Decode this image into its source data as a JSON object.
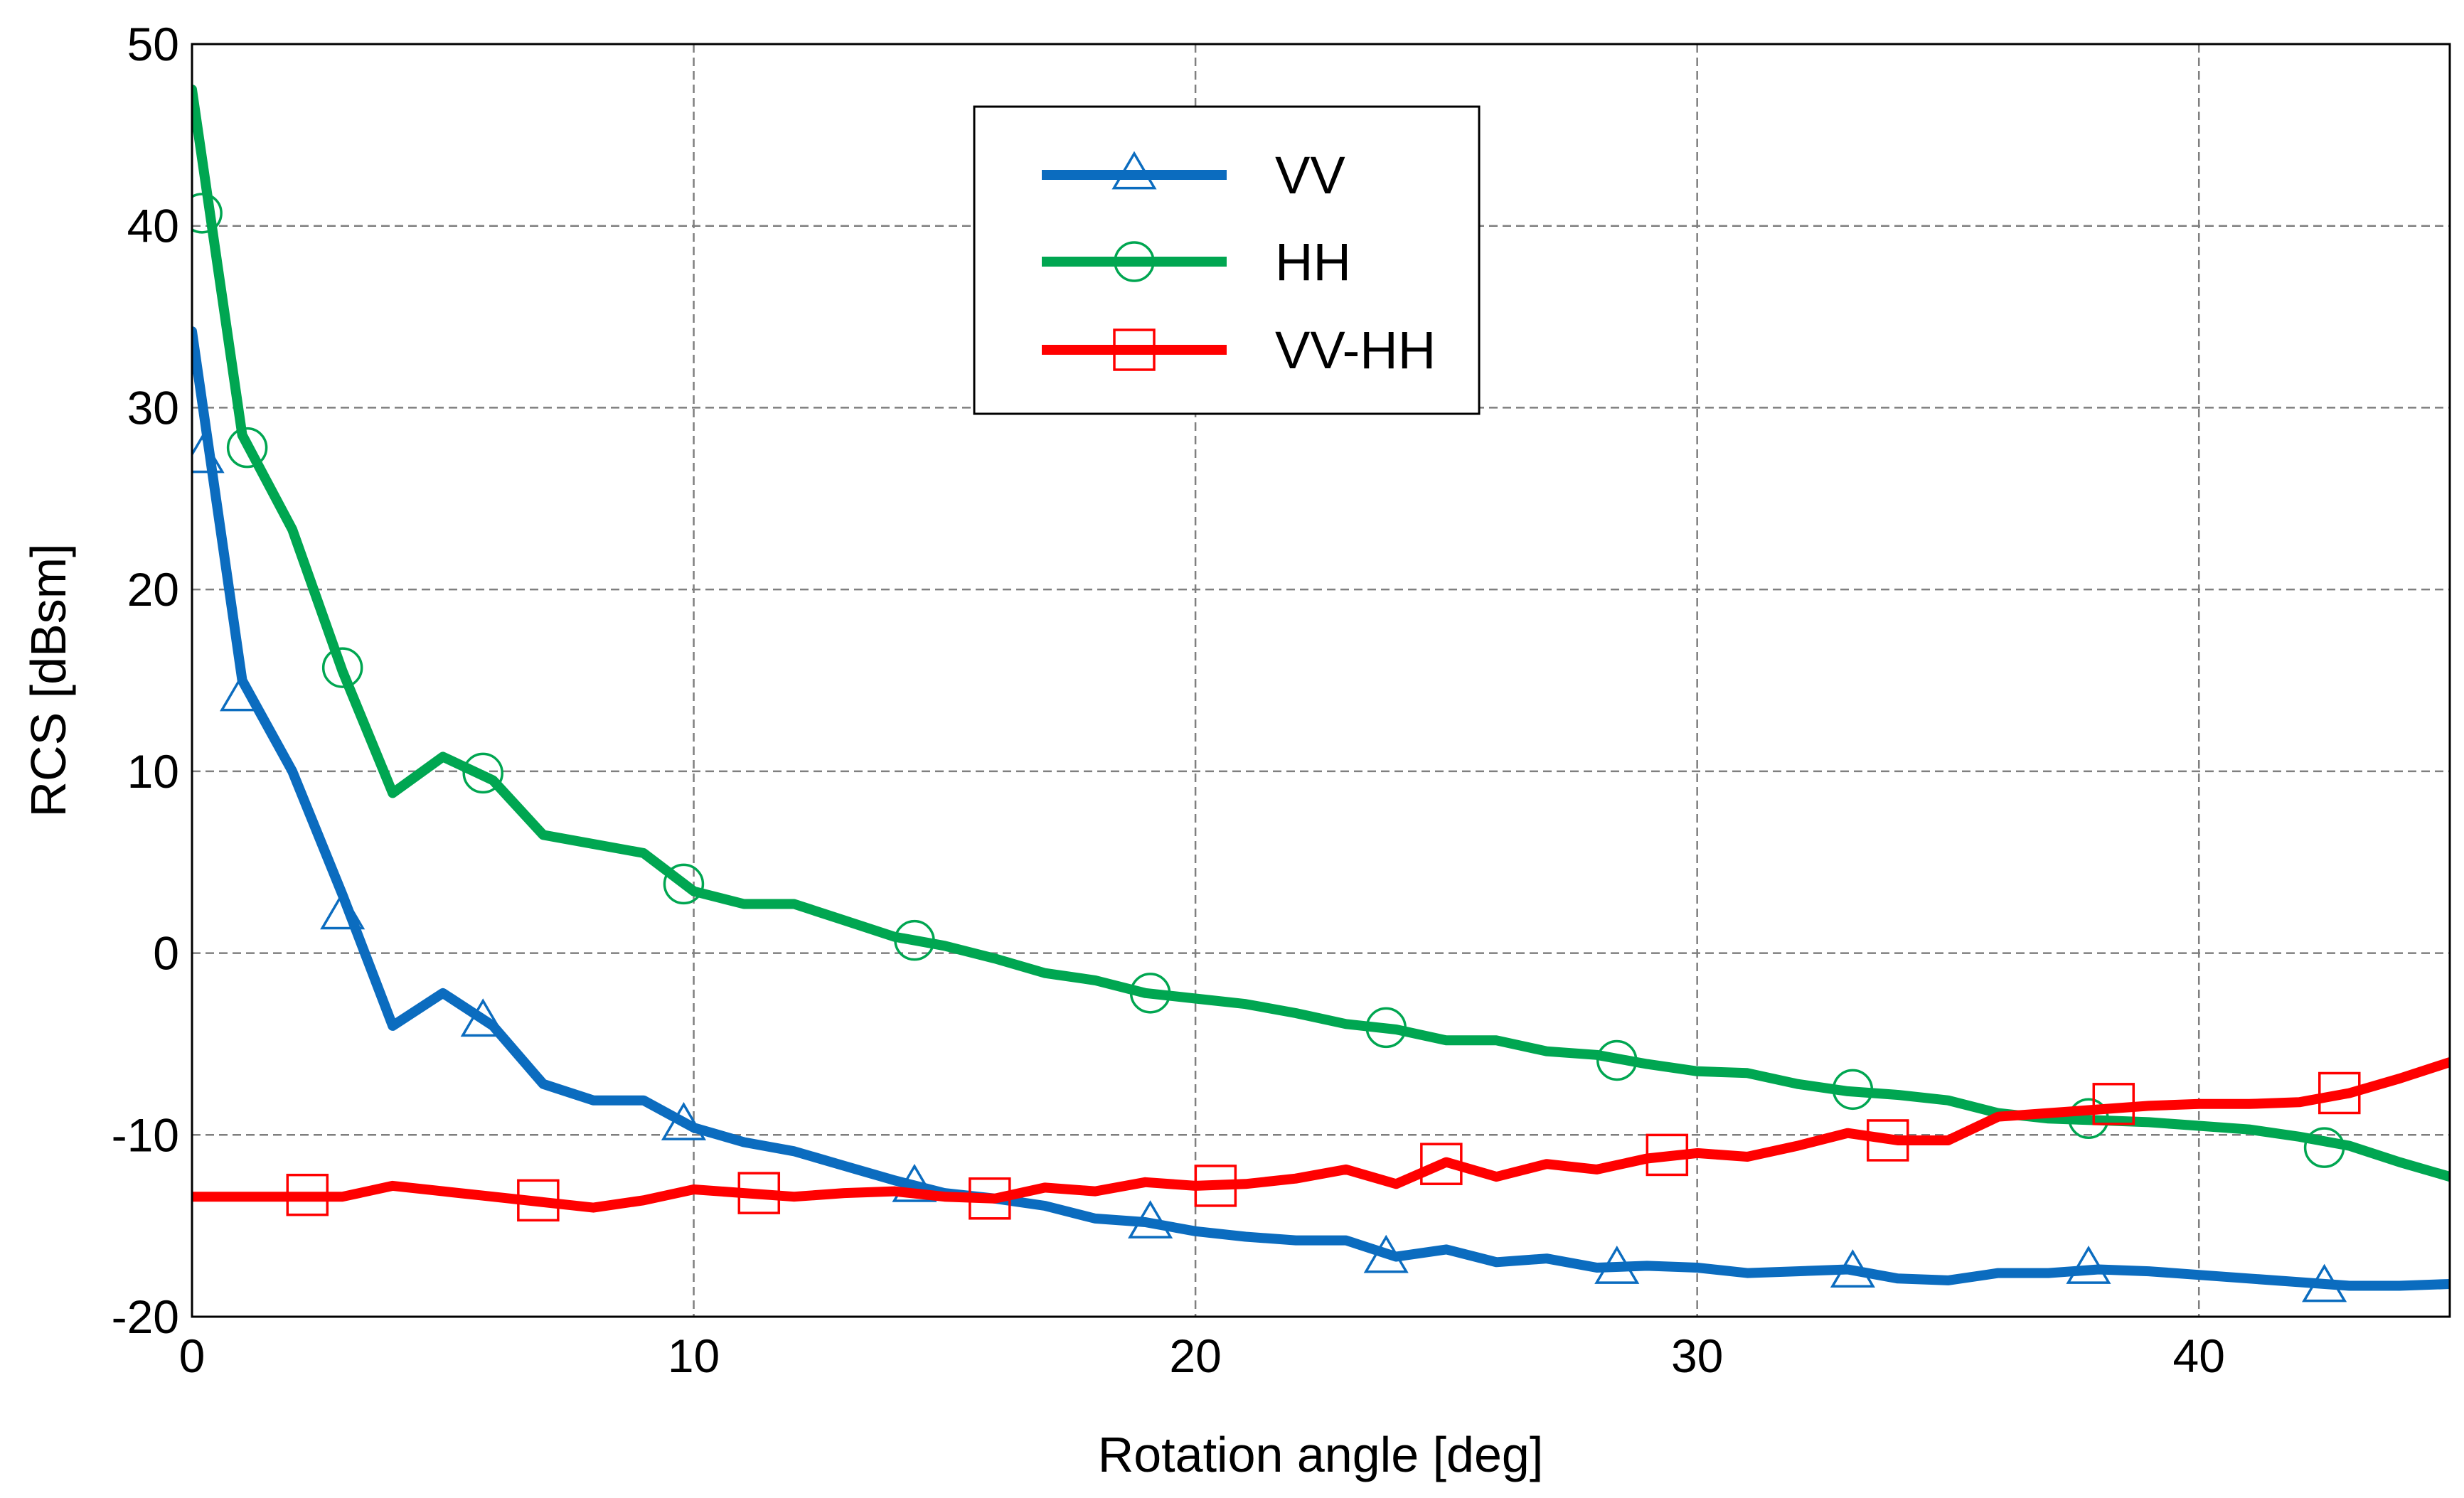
{
  "chart_data": {
    "type": "line",
    "xlabel": "Rotation angle [deg]",
    "ylabel": "RCS [dBsm]",
    "xlim": [
      0,
      45
    ],
    "ylim": [
      -20,
      50
    ],
    "xticks": [
      0,
      10,
      20,
      30,
      40
    ],
    "yticks": [
      -20,
      -10,
      0,
      10,
      20,
      30,
      40,
      50
    ],
    "grid": true,
    "legend_position": "top-center",
    "series": [
      {
        "name": "VV",
        "color": "#0b6cbf",
        "marker": "triangle",
        "x": [
          0,
          1,
          2,
          3,
          4,
          5,
          6,
          7,
          8,
          9,
          10,
          11,
          12,
          13,
          14,
          15,
          16,
          17,
          18,
          19,
          20,
          21,
          22,
          23,
          24,
          25,
          26,
          27,
          28,
          29,
          30,
          31,
          32,
          33,
          34,
          35,
          36,
          37,
          38,
          39,
          40,
          41,
          42,
          43,
          44,
          45
        ],
        "values": [
          34.2,
          15.0,
          10.0,
          3.2,
          -4.0,
          -2.2,
          -4.0,
          -7.2,
          -8.1,
          -8.1,
          -9.6,
          -10.4,
          -10.9,
          -11.7,
          -12.5,
          -13.2,
          -13.5,
          -13.9,
          -14.6,
          -14.8,
          -15.3,
          -15.6,
          -15.8,
          -15.8,
          -16.7,
          -16.3,
          -17.0,
          -16.8,
          -17.3,
          -17.2,
          -17.3,
          -17.6,
          -17.5,
          -17.4,
          -17.9,
          -18.0,
          -17.6,
          -17.6,
          -17.4,
          -17.5,
          -17.7,
          -17.9,
          -18.1,
          -18.3,
          -18.3,
          -18.2
        ],
        "marker_x": [
          0.2,
          1.0,
          3.0,
          5.8,
          9.8,
          14.4,
          19.1,
          23.8,
          28.4,
          33.1,
          37.8,
          42.5
        ],
        "marker_y": [
          27.2,
          14.1,
          2.1,
          -3.8,
          -9.5,
          -12.9,
          -14.9,
          -16.8,
          -17.4,
          -17.6,
          -17.4,
          -18.4
        ]
      },
      {
        "name": "HH",
        "color": "#00a651",
        "marker": "circle",
        "x": [
          0,
          1,
          2,
          3,
          4,
          5,
          6,
          7,
          8,
          9,
          10,
          11,
          12,
          13,
          14,
          15,
          16,
          17,
          18,
          19,
          20,
          21,
          22,
          23,
          24,
          25,
          26,
          27,
          28,
          29,
          30,
          31,
          32,
          33,
          34,
          35,
          36,
          37,
          38,
          39,
          40,
          41,
          42,
          43,
          44,
          45
        ],
        "values": [
          47.5,
          28.5,
          23.3,
          15.5,
          8.8,
          10.8,
          9.5,
          6.5,
          6.0,
          5.5,
          3.4,
          2.7,
          2.7,
          1.8,
          0.9,
          0.4,
          -0.3,
          -1.1,
          -1.5,
          -2.2,
          -2.5,
          -2.8,
          -3.3,
          -3.9,
          -4.2,
          -4.8,
          -4.8,
          -5.4,
          -5.6,
          -6.1,
          -6.5,
          -6.6,
          -7.2,
          -7.6,
          -7.8,
          -8.1,
          -8.8,
          -9.1,
          -9.2,
          -9.3,
          -9.5,
          -9.7,
          -10.1,
          -10.6,
          -11.5,
          -12.3
        ],
        "marker_x": [
          0.2,
          1.1,
          3.0,
          5.8,
          9.8,
          14.4,
          19.1,
          23.8,
          28.4,
          33.1,
          37.8,
          42.5
        ],
        "marker_y": [
          40.7,
          27.8,
          15.7,
          9.9,
          3.8,
          0.7,
          -2.2,
          -4.1,
          -5.9,
          -7.5,
          -9.1,
          -10.7
        ]
      },
      {
        "name": "VV-HH",
        "color": "#ff0000",
        "marker": "square",
        "x": [
          0,
          1,
          2,
          3,
          4,
          5,
          6,
          7,
          8,
          9,
          10,
          11,
          12,
          13,
          14,
          15,
          16,
          17,
          18,
          19,
          20,
          21,
          22,
          23,
          24,
          25,
          26,
          27,
          28,
          29,
          30,
          31,
          32,
          33,
          34,
          35,
          36,
          37,
          38,
          39,
          40,
          41,
          42,
          43,
          44,
          45
        ],
        "values": [
          -13.4,
          -13.4,
          -13.4,
          -13.4,
          -12.8,
          -13.1,
          -13.4,
          -13.7,
          -14.0,
          -13.6,
          -13.0,
          -13.2,
          -13.4,
          -13.2,
          -13.1,
          -13.4,
          -13.5,
          -12.9,
          -13.1,
          -12.6,
          -12.8,
          -12.7,
          -12.4,
          -11.9,
          -12.7,
          -11.5,
          -12.3,
          -11.6,
          -11.9,
          -11.3,
          -11.0,
          -11.2,
          -10.6,
          -9.9,
          -10.3,
          -10.3,
          -9.0,
          -8.8,
          -8.6,
          -8.4,
          -8.3,
          -8.3,
          -8.2,
          -7.7,
          -6.9,
          -6.0
        ],
        "marker_x": [
          2.3,
          6.9,
          11.3,
          15.9,
          20.4,
          24.9,
          29.4,
          33.8,
          38.3,
          42.8
        ],
        "marker_y": [
          -13.3,
          -13.6,
          -13.2,
          -13.5,
          -12.8,
          -11.6,
          -11.1,
          -10.3,
          -8.3,
          -7.7
        ]
      }
    ]
  }
}
